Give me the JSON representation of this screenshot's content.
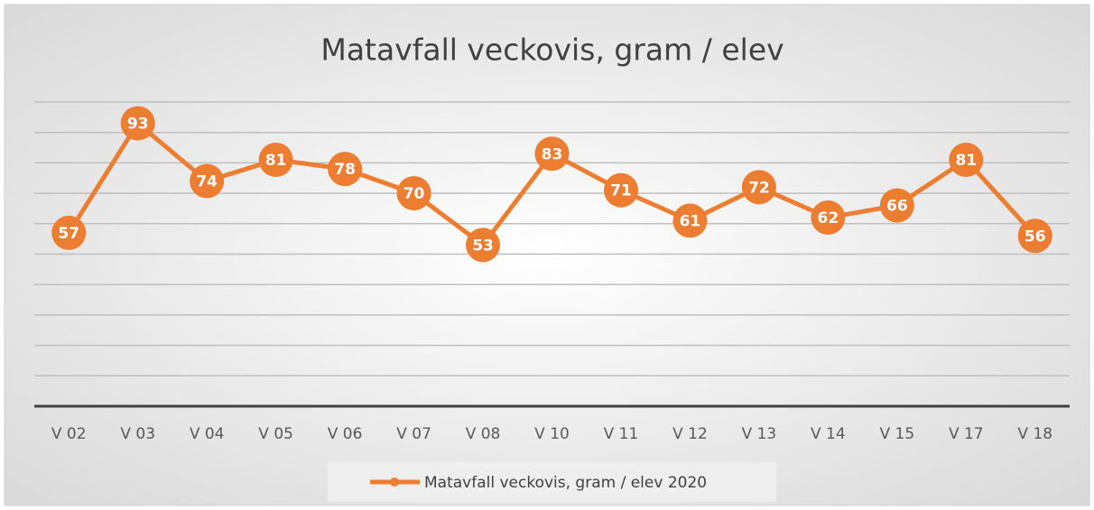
{
  "chart_data": {
    "type": "line",
    "title": "Matavfall veckovis, gram / elev",
    "categories": [
      "V 02",
      "V 03",
      "V 04",
      "V 05",
      "V 06",
      "V 07",
      "V 08",
      "V 10",
      "V 11",
      "V 12",
      "V 13",
      "V 14",
      "V 15",
      "V 17",
      "V 18"
    ],
    "series": [
      {
        "name": "Matavfall veckovis, gram / elev 2020",
        "color": "#ed7d31",
        "values": [
          57,
          93,
          74,
          81,
          78,
          70,
          53,
          83,
          71,
          61,
          72,
          62,
          66,
          81,
          56
        ]
      }
    ],
    "ylim": [
      0,
      100
    ],
    "yticks": [
      0,
      10,
      20,
      30,
      40,
      50,
      60,
      70,
      80,
      90,
      100
    ],
    "grid": true,
    "legend": "bottom"
  }
}
